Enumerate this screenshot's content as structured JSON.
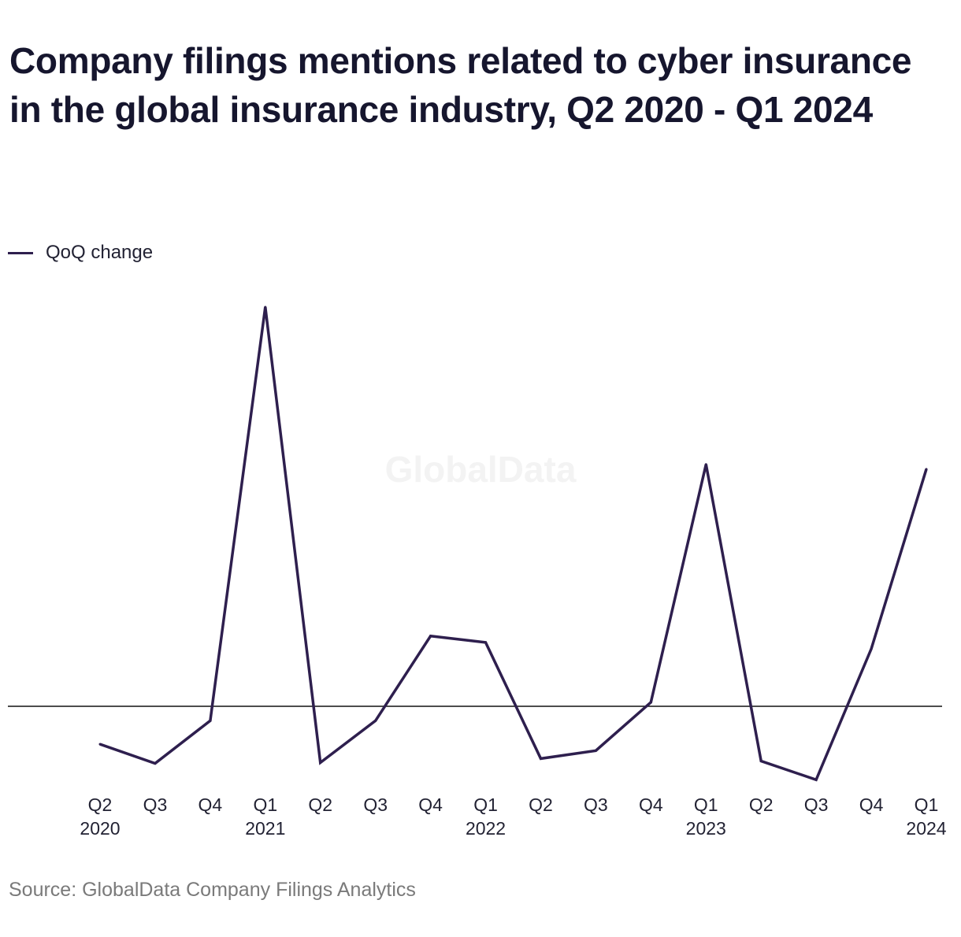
{
  "title": "Company filings mentions related to cyber insurance in the global insurance industry, Q2 2020 - Q1 2024",
  "source": "Source: GlobalData Company Filings Analytics",
  "watermark": "GlobalData",
  "colors": {
    "series": "#2e1f4e",
    "zero_line": "#111111",
    "title": "#16162e",
    "source": "#7a7a7a"
  },
  "chart_data": {
    "type": "line",
    "title": "Company filings mentions related to cyber insurance in the global insurance industry, Q2 2020 - Q1 2024",
    "x_tick_labels": [
      [
        "Q2",
        "2020"
      ],
      [
        "Q3",
        ""
      ],
      [
        "Q4",
        ""
      ],
      [
        "Q1",
        "2021"
      ],
      [
        "Q2",
        ""
      ],
      [
        "Q3",
        ""
      ],
      [
        "Q4",
        ""
      ],
      [
        "Q1",
        "2022"
      ],
      [
        "Q2",
        ""
      ],
      [
        "Q3",
        ""
      ],
      [
        "Q4",
        ""
      ],
      [
        "Q1",
        "2023"
      ],
      [
        "Q2",
        ""
      ],
      [
        "Q3",
        ""
      ],
      [
        "Q4",
        ""
      ],
      [
        "Q1",
        "2024"
      ]
    ],
    "categories": [
      "Q2 2020",
      "Q3 2020",
      "Q4 2020",
      "Q1 2021",
      "Q2 2021",
      "Q3 2021",
      "Q4 2021",
      "Q1 2022",
      "Q2 2022",
      "Q3 2022",
      "Q4 2022",
      "Q1 2023",
      "Q2 2023",
      "Q3 2023",
      "Q4 2023",
      "Q1 2024"
    ],
    "series": [
      {
        "name": "QoQ change",
        "values": [
          -0.095,
          -0.143,
          -0.036,
          1.0,
          -0.141,
          -0.036,
          0.176,
          0.16,
          -0.131,
          -0.111,
          0.01,
          0.606,
          -0.137,
          -0.184,
          0.144,
          0.594
        ]
      }
    ],
    "ylim": [
      -0.25,
      1.05
    ],
    "y_axis_visible": false,
    "zero_line": true,
    "grid": false,
    "legend_position": "top-left",
    "xlabel": "",
    "ylabel": ""
  }
}
